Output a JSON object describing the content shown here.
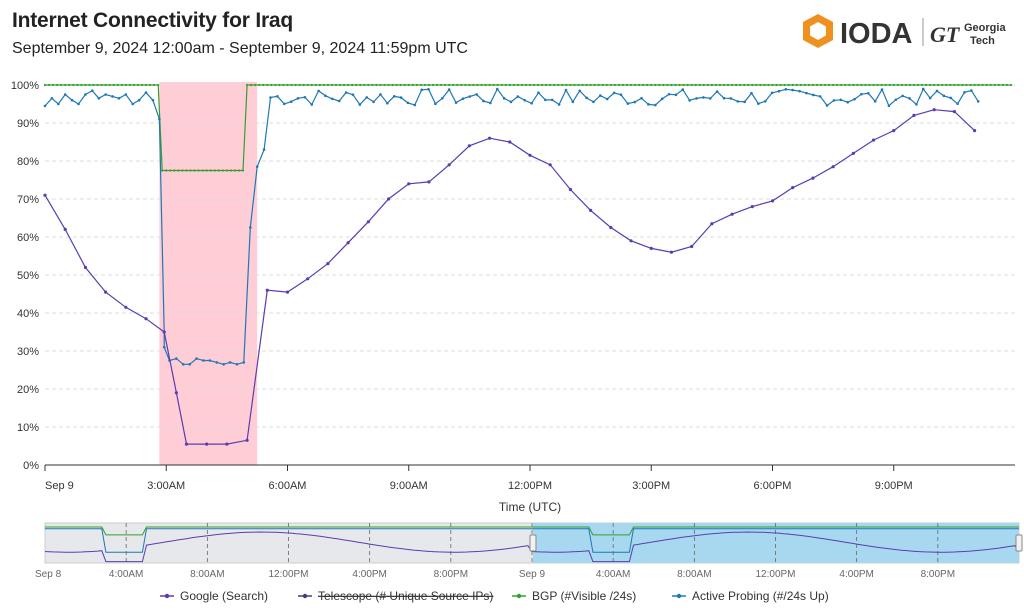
{
  "header": {
    "title": "Internet Connectivity for  Iraq",
    "subtitle": "September 9, 2024 12:00am - September 9, 2024 11:59pm UTC",
    "logo_text": "IODA",
    "gt_text": "GT",
    "gt_name_line1": "Georgia",
    "gt_name_line2": "Tech"
  },
  "colors": {
    "google": "#5b3cb0",
    "telescope": "#4a3a7a",
    "bgp": "#33a02c",
    "active": "#1f78b4",
    "outage": "#ffcdd6",
    "logo_orange": "#f0901e",
    "navigator_bg": "#e6e8ec",
    "navigator_selected": "#a8d8ef"
  },
  "chart_data": {
    "type": "line",
    "xlabel": "Time (UTC)",
    "x_ticks": [
      "Sep 9",
      "3:00AM",
      "6:00AM",
      "9:00AM",
      "12:00PM",
      "3:00PM",
      "6:00PM",
      "9:00PM"
    ],
    "y_ticks": [
      "0%",
      "10%",
      "20%",
      "30%",
      "40%",
      "50%",
      "60%",
      "70%",
      "80%",
      "90%",
      "100%"
    ],
    "ylim": [
      0,
      100
    ],
    "xlim_hours": [
      0,
      24
    ],
    "grid": true,
    "legend_position": "bottom",
    "outage_band_hours": [
      2.83,
      5.25
    ],
    "series": [
      {
        "name": "Google (Search)",
        "points": [
          [
            0,
            71
          ],
          [
            0.5,
            62
          ],
          [
            1,
            52
          ],
          [
            1.5,
            45.5
          ],
          [
            2,
            41.5
          ],
          [
            2.5,
            38.5
          ],
          [
            2.95,
            35
          ],
          [
            3.25,
            19
          ],
          [
            3.5,
            5.5
          ],
          [
            4,
            5.5
          ],
          [
            4.5,
            5.5
          ],
          [
            5,
            6.5
          ],
          [
            5.5,
            46
          ],
          [
            6,
            45.5
          ],
          [
            6.5,
            49
          ],
          [
            7,
            53
          ],
          [
            7.5,
            58.5
          ],
          [
            8,
            64
          ],
          [
            8.5,
            70
          ],
          [
            9,
            74
          ],
          [
            9.5,
            74.5
          ],
          [
            10,
            79
          ],
          [
            10.5,
            84
          ],
          [
            11,
            86
          ],
          [
            11.5,
            85
          ],
          [
            12,
            81.5
          ],
          [
            12.5,
            79
          ],
          [
            13,
            72.5
          ],
          [
            13.5,
            67
          ],
          [
            14,
            62.5
          ],
          [
            14.5,
            59
          ],
          [
            15,
            57
          ],
          [
            15.5,
            56
          ],
          [
            16,
            57.5
          ],
          [
            16.5,
            63.5
          ],
          [
            17,
            66
          ],
          [
            17.5,
            68
          ],
          [
            18,
            69.5
          ],
          [
            18.5,
            73
          ],
          [
            19,
            75.5
          ],
          [
            19.5,
            78.5
          ],
          [
            20,
            82
          ],
          [
            20.5,
            85.5
          ],
          [
            21,
            88
          ],
          [
            21.5,
            92
          ],
          [
            22,
            93.5
          ],
          [
            22.5,
            93
          ],
          [
            23,
            88
          ]
        ]
      },
      {
        "name": "Telescope (# Unique Source IPs)",
        "hidden": true,
        "points": [
          [
            2.95,
            31
          ],
          [
            3.08,
            27.5
          ],
          [
            3.25,
            28
          ],
          [
            3.42,
            26.5
          ],
          [
            3.58,
            26.5
          ],
          [
            3.75,
            28
          ],
          [
            3.92,
            27.5
          ],
          [
            4.08,
            27.5
          ],
          [
            4.25,
            27
          ],
          [
            4.42,
            26.5
          ],
          [
            4.58,
            27
          ],
          [
            4.75,
            26.5
          ],
          [
            4.92,
            27
          ],
          [
            5.08,
            62.5
          ],
          [
            5.25,
            78.5
          ],
          [
            5.42,
            83
          ]
        ]
      },
      {
        "name": "BGP (#Visible /24s)",
        "normal": 100,
        "outage_value": 77.5,
        "drop_start": 2.9,
        "drop_end": 4.95
      },
      {
        "name": "Active Probing (#/24s Up)",
        "points": [
          [
            0,
            94.5
          ],
          [
            0.17,
            96.5
          ],
          [
            0.33,
            95
          ],
          [
            0.5,
            97.5
          ],
          [
            0.67,
            96
          ],
          [
            0.83,
            95
          ],
          [
            1,
            97.5
          ],
          [
            1.17,
            98.5
          ],
          [
            1.33,
            96.5
          ],
          [
            1.5,
            97.5
          ],
          [
            1.67,
            97
          ],
          [
            1.83,
            96.5
          ],
          [
            2,
            97.5
          ],
          [
            2.17,
            95
          ],
          [
            2.33,
            96
          ],
          [
            2.5,
            98
          ],
          [
            2.67,
            96
          ],
          [
            2.83,
            91
          ],
          [
            2.95,
            35
          ]
        ]
      }
    ]
  },
  "navigator": {
    "labels": [
      "Sep 8",
      "4:00AM",
      "8:00AM",
      "12:00PM",
      "4:00PM",
      "8:00PM",
      "Sep 9",
      "4:00AM",
      "8:00AM",
      "12:00PM",
      "4:00PM",
      "8:00PM"
    ]
  },
  "legend": [
    {
      "name": "Google (Search)",
      "color": "#5b3cb0"
    },
    {
      "name": "Telescope (# Unique Source IPs)",
      "color": "#4a3a7a",
      "hidden": true
    },
    {
      "name": "BGP (#Visible /24s)",
      "color": "#33a02c"
    },
    {
      "name": "Active Probing (#/24s Up)",
      "color": "#1f78b4"
    }
  ]
}
